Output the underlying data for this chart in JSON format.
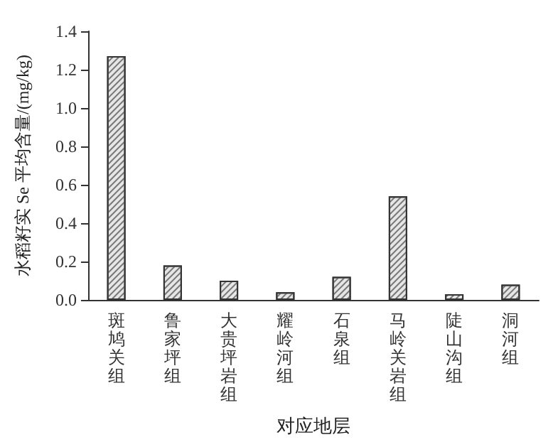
{
  "chart_data": {
    "type": "bar",
    "xlabel": "对应地层",
    "ylabel": "水稻籽实 Se 平均含量/(mg/kg)",
    "categories": [
      "斑鸠关组",
      "鲁家坪组",
      "大贵坪岩组",
      "耀岭河组",
      "石泉组",
      "马岭关岩组",
      "陡山沟组",
      "洞河组"
    ],
    "values": [
      1.27,
      0.18,
      0.1,
      0.04,
      0.12,
      0.54,
      0.03,
      0.08
    ],
    "color": "#e6e6e6",
    "ylim": [
      0,
      1.4
    ],
    "yticks": [
      {
        "value": 0,
        "label": "0.0"
      },
      0.2,
      0.4,
      0.6,
      0.8,
      {
        "value": 1,
        "label": "1.0"
      },
      1.2,
      1.4
    ],
    "grid": false
  }
}
